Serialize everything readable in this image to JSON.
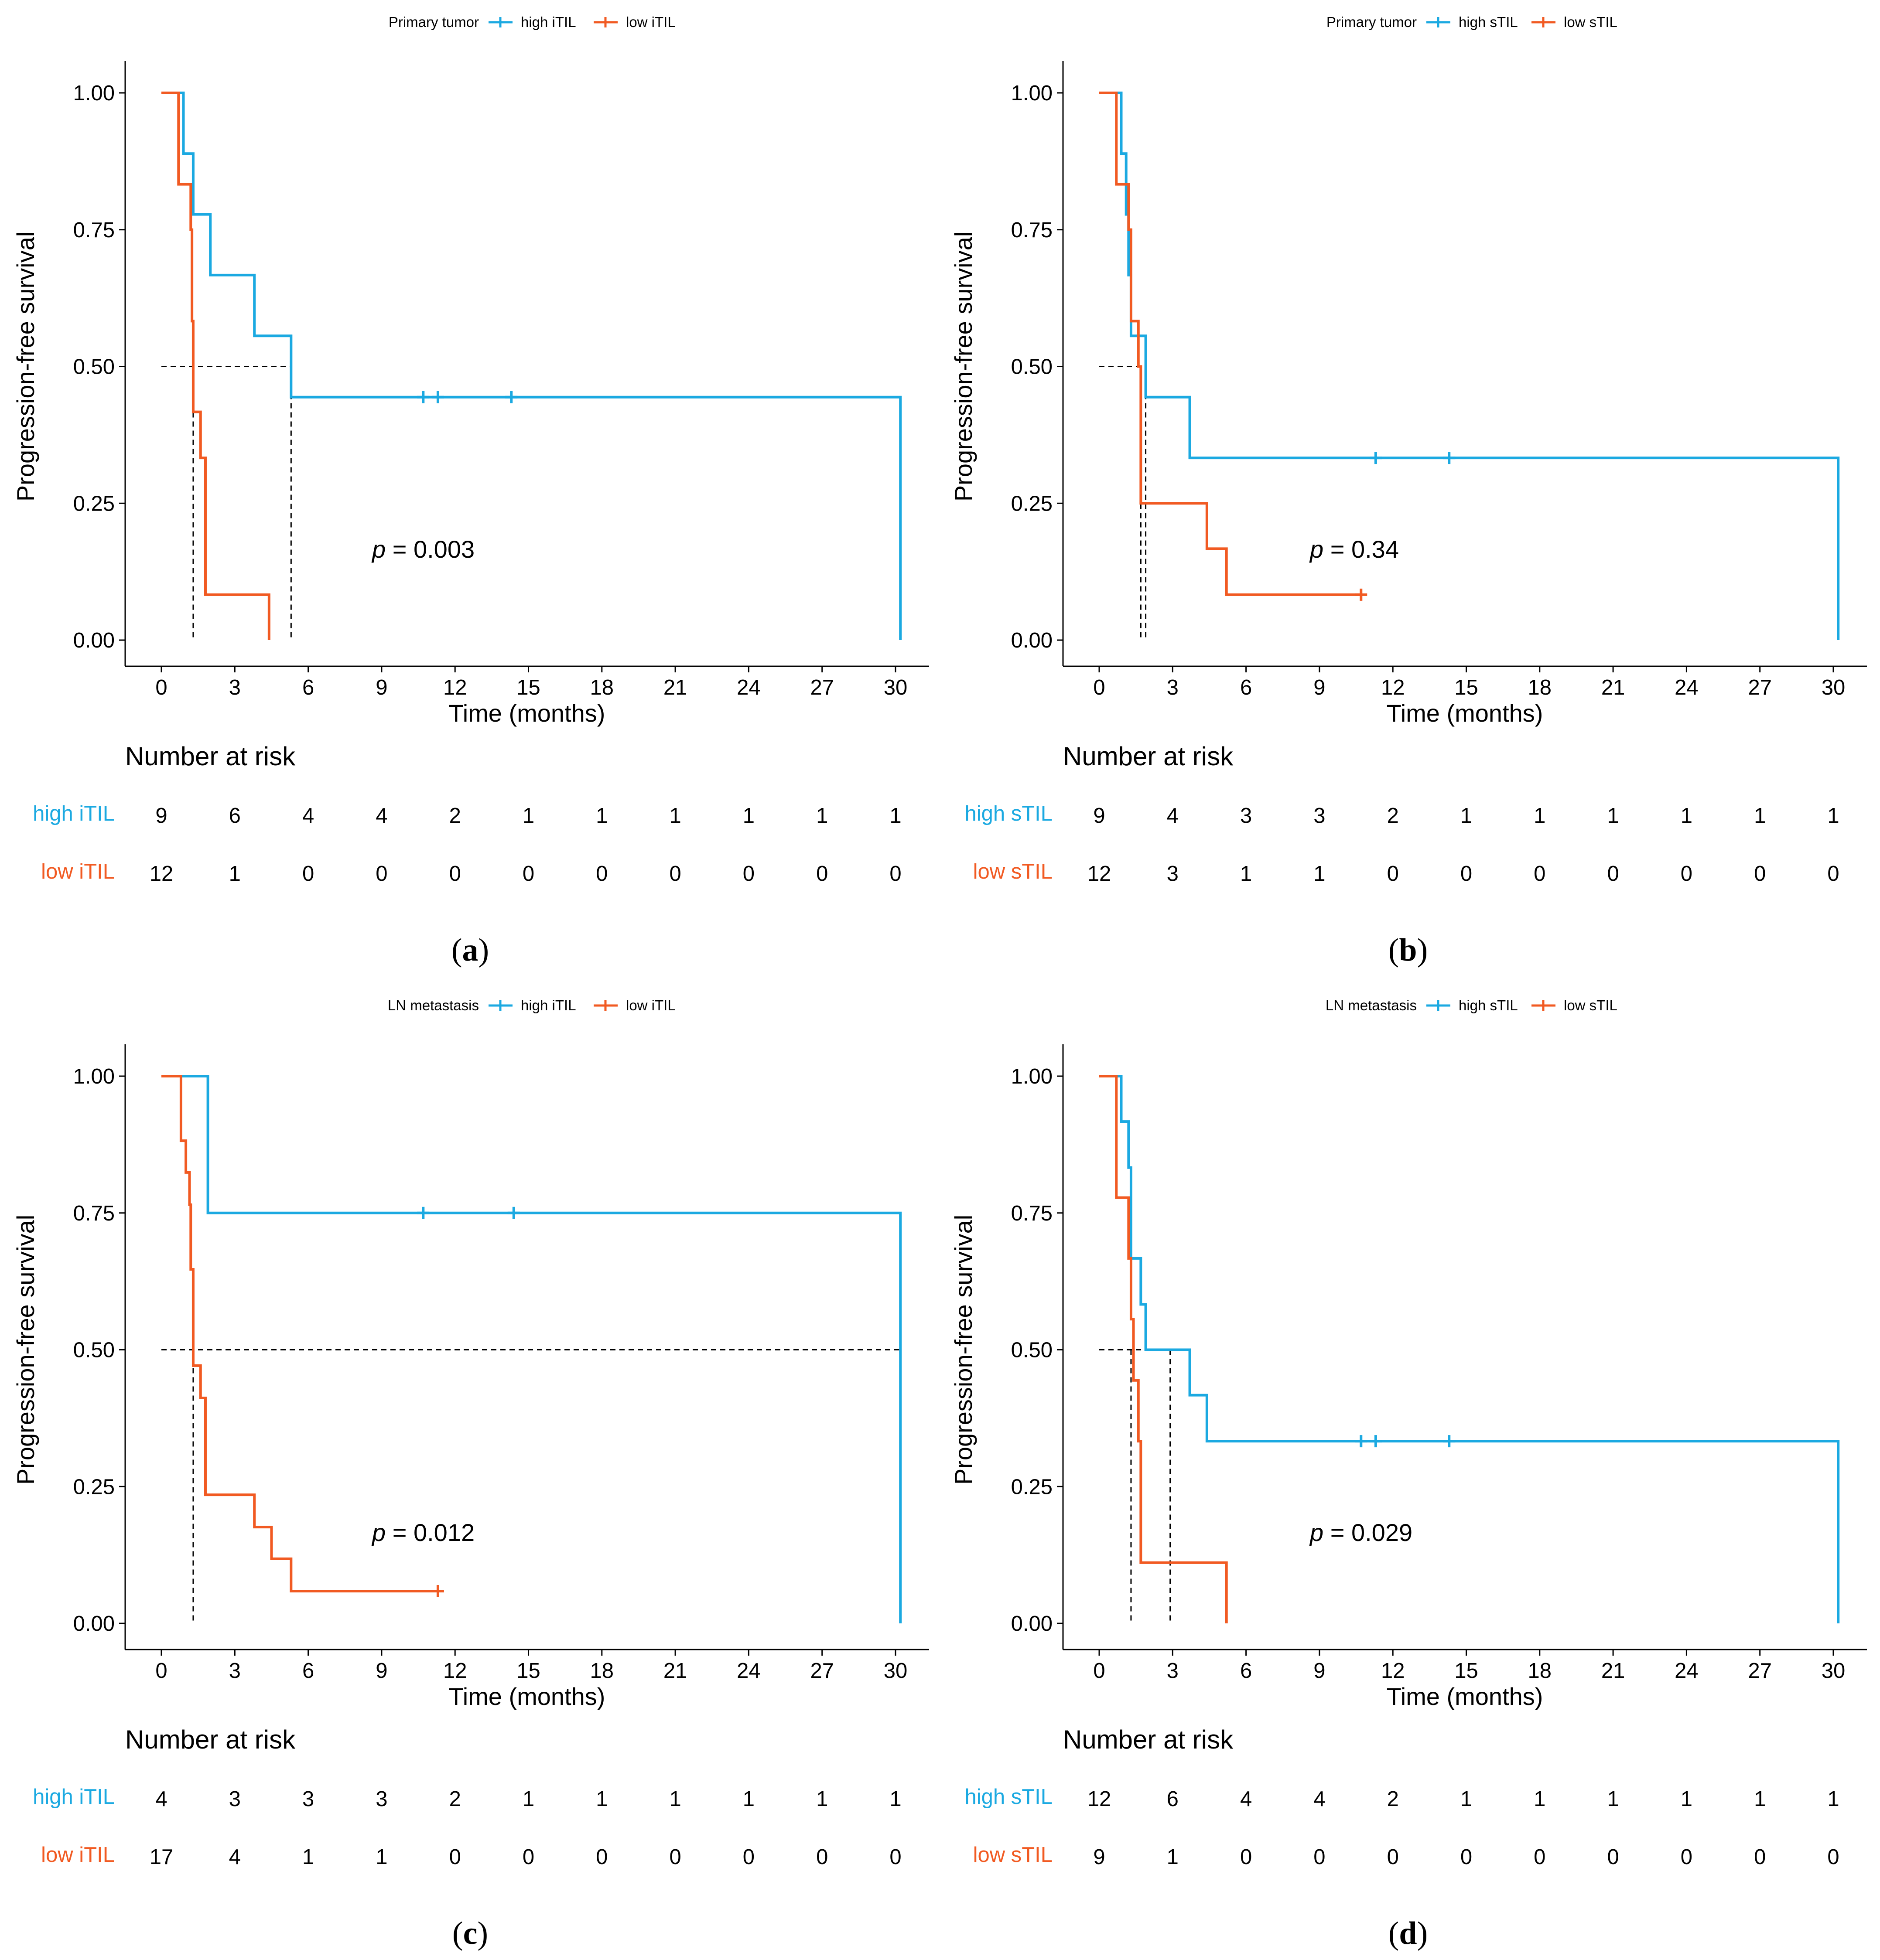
{
  "chart_data": [
    {
      "type": "line",
      "panel": "a",
      "legend_title": "Primary tumor",
      "legend_placement": "top",
      "xlabel": "Time (months)",
      "ylabel": "Progression-free survival",
      "xlim": [
        -1,
        31.5
      ],
      "ylim": [
        0,
        1
      ],
      "x_ticks": [
        "0",
        "3",
        "6",
        "9",
        "12",
        "15",
        "18",
        "21",
        "24",
        "27",
        "30"
      ],
      "y_ticks": [
        "0.00",
        "0.25",
        "0.50",
        "0.75",
        "1.00"
      ],
      "grid": false,
      "pvalue_prefix": "p",
      "pvalue": " = 0.003",
      "median_line": {
        "y": 0.5,
        "x": [
          1.3,
          5.3
        ]
      },
      "series": [
        {
          "name": "high iTIL",
          "color": "#1ba9e1",
          "steps": [
            [
              0,
              1.0
            ],
            [
              0.9,
              0.889
            ],
            [
              1.3,
              0.778
            ],
            [
              2.0,
              0.667
            ],
            [
              3.8,
              0.556
            ],
            [
              5.3,
              0.444
            ],
            [
              30.2,
              0.0
            ]
          ],
          "end": 30.2,
          "censor": [
            10.7,
            11.3,
            14.3
          ],
          "censor_y": [
            0.444,
            0.444,
            0.444
          ]
        },
        {
          "name": "low iTIL",
          "color": "#f15a22",
          "steps": [
            [
              0,
              1.0
            ],
            [
              0.7,
              0.833
            ],
            [
              1.2,
              0.75
            ],
            [
              1.25,
              0.583
            ],
            [
              1.3,
              0.417
            ],
            [
              1.6,
              0.333
            ],
            [
              1.8,
              0.083
            ],
            [
              4.4,
              0.0
            ]
          ],
          "end": 4.4,
          "censor": [],
          "censor_y": []
        }
      ],
      "risk_table": {
        "title": "Number at risk",
        "rows": [
          {
            "label": "high iTIL",
            "color": "#1ba9e1",
            "values": [
              "9",
              "6",
              "4",
              "4",
              "2",
              "1",
              "1",
              "1",
              "1",
              "1",
              "1"
            ]
          },
          {
            "label": "low iTIL",
            "color": "#f15a22",
            "values": [
              "12",
              "1",
              "0",
              "0",
              "0",
              "0",
              "0",
              "0",
              "0",
              "0",
              "0"
            ]
          }
        ]
      },
      "caption": {
        "open": "(",
        "letter": "a",
        "close": ")"
      }
    },
    {
      "type": "line",
      "panel": "b",
      "legend_title": "Primary tumor",
      "legend_placement": "top",
      "xlabel": "Time (months)",
      "ylabel": "Progression-free survival",
      "xlim": [
        -1,
        31.5
      ],
      "ylim": [
        0,
        1
      ],
      "x_ticks": [
        "0",
        "3",
        "6",
        "9",
        "12",
        "15",
        "18",
        "21",
        "24",
        "27",
        "30"
      ],
      "y_ticks": [
        "0.00",
        "0.25",
        "0.50",
        "0.75",
        "1.00"
      ],
      "grid": false,
      "pvalue_prefix": "p",
      "pvalue": " = 0.34",
      "median_line": {
        "y": 0.5,
        "x": [
          1.7,
          1.9
        ]
      },
      "series": [
        {
          "name": "high sTIL",
          "color": "#1ba9e1",
          "steps": [
            [
              0,
              1.0
            ],
            [
              0.9,
              0.889
            ],
            [
              1.1,
              0.778
            ],
            [
              1.2,
              0.667
            ],
            [
              1.3,
              0.556
            ],
            [
              1.9,
              0.444
            ],
            [
              3.7,
              0.333
            ],
            [
              30.2,
              0.0
            ]
          ],
          "end": 30.2,
          "censor": [
            11.3,
            14.3
          ],
          "censor_y": [
            0.333,
            0.333
          ]
        },
        {
          "name": "low sTIL",
          "color": "#f15a22",
          "steps": [
            [
              0,
              1.0
            ],
            [
              0.7,
              0.833
            ],
            [
              1.2,
              0.75
            ],
            [
              1.3,
              0.583
            ],
            [
              1.6,
              0.5
            ],
            [
              1.7,
              0.25
            ],
            [
              4.4,
              0.167
            ],
            [
              5.2,
              0.083
            ]
          ],
          "end": 10.7,
          "censor": [
            10.7
          ],
          "censor_y": [
            0.083
          ]
        }
      ],
      "risk_table": {
        "title": "Number at risk",
        "rows": [
          {
            "label": "high sTIL",
            "color": "#1ba9e1",
            "values": [
              "9",
              "4",
              "3",
              "3",
              "2",
              "1",
              "1",
              "1",
              "1",
              "1",
              "1"
            ]
          },
          {
            "label": "low sTIL",
            "color": "#f15a22",
            "values": [
              "12",
              "3",
              "1",
              "1",
              "0",
              "0",
              "0",
              "0",
              "0",
              "0",
              "0"
            ]
          }
        ]
      },
      "caption": {
        "open": "(",
        "letter": "b",
        "close": ")"
      }
    },
    {
      "type": "line",
      "panel": "c",
      "legend_title": "LN metastasis",
      "legend_placement": "top",
      "xlabel": "Time (months)",
      "ylabel": "Progression-free survival",
      "xlim": [
        -1,
        31.5
      ],
      "ylim": [
        0,
        1
      ],
      "x_ticks": [
        "0",
        "3",
        "6",
        "9",
        "12",
        "15",
        "18",
        "21",
        "24",
        "27",
        "30"
      ],
      "y_ticks": [
        "0.00",
        "0.25",
        "0.50",
        "0.75",
        "1.00"
      ],
      "grid": false,
      "pvalue_prefix": "p",
      "pvalue": " = 0.012",
      "median_line": {
        "y": 0.5,
        "x": [
          1.3,
          30.2
        ]
      },
      "series": [
        {
          "name": "high iTIL",
          "color": "#1ba9e1",
          "steps": [
            [
              0,
              1.0
            ],
            [
              1.9,
              0.75
            ],
            [
              30.2,
              0.0
            ]
          ],
          "end": 30.2,
          "censor": [
            10.7,
            14.4
          ],
          "censor_y": [
            0.75,
            0.75
          ]
        },
        {
          "name": "low iTIL",
          "color": "#f15a22",
          "steps": [
            [
              0,
              1.0
            ],
            [
              0.8,
              0.882
            ],
            [
              1.0,
              0.824
            ],
            [
              1.15,
              0.765
            ],
            [
              1.2,
              0.647
            ],
            [
              1.3,
              0.471
            ],
            [
              1.6,
              0.412
            ],
            [
              1.8,
              0.235
            ],
            [
              3.8,
              0.176
            ],
            [
              4.5,
              0.118
            ],
            [
              5.3,
              0.059
            ]
          ],
          "end": 11.3,
          "censor": [
            11.3
          ],
          "censor_y": [
            0.059
          ]
        }
      ],
      "risk_table": {
        "title": "Number at risk",
        "rows": [
          {
            "label": "high iTIL",
            "color": "#1ba9e1",
            "values": [
              "4",
              "3",
              "3",
              "3",
              "2",
              "1",
              "1",
              "1",
              "1",
              "1",
              "1"
            ]
          },
          {
            "label": "low iTIL",
            "color": "#f15a22",
            "values": [
              "17",
              "4",
              "1",
              "1",
              "0",
              "0",
              "0",
              "0",
              "0",
              "0",
              "0"
            ]
          }
        ]
      },
      "caption": {
        "open": "(",
        "letter": "c",
        "close": ")"
      }
    },
    {
      "type": "line",
      "panel": "d",
      "legend_title": "LN metastasis",
      "legend_placement": "top",
      "xlabel": "Time (months)",
      "ylabel": "Progression-free survival",
      "xlim": [
        -1,
        31.5
      ],
      "ylim": [
        0,
        1
      ],
      "x_ticks": [
        "0",
        "3",
        "6",
        "9",
        "12",
        "15",
        "18",
        "21",
        "24",
        "27",
        "30"
      ],
      "y_ticks": [
        "0.00",
        "0.25",
        "0.50",
        "0.75",
        "1.00"
      ],
      "grid": false,
      "pvalue_prefix": "p",
      "pvalue": " = 0.029",
      "median_line": {
        "y": 0.5,
        "x": [
          1.3,
          2.9
        ]
      },
      "series": [
        {
          "name": "high sTIL",
          "color": "#1ba9e1",
          "steps": [
            [
              0,
              1.0
            ],
            [
              0.9,
              0.917
            ],
            [
              1.2,
              0.833
            ],
            [
              1.3,
              0.667
            ],
            [
              1.7,
              0.583
            ],
            [
              1.9,
              0.5
            ],
            [
              3.7,
              0.417
            ],
            [
              4.4,
              0.333
            ],
            [
              30.2,
              0.0
            ]
          ],
          "end": 30.2,
          "censor": [
            10.7,
            11.3,
            14.3
          ],
          "censor_y": [
            0.333,
            0.333,
            0.333
          ]
        },
        {
          "name": "low sTIL",
          "color": "#f15a22",
          "steps": [
            [
              0,
              1.0
            ],
            [
              0.7,
              0.778
            ],
            [
              1.2,
              0.667
            ],
            [
              1.3,
              0.556
            ],
            [
              1.4,
              0.444
            ],
            [
              1.6,
              0.333
            ],
            [
              1.7,
              0.111
            ],
            [
              5.2,
              0.0
            ]
          ],
          "end": 5.2,
          "censor": [],
          "censor_y": []
        }
      ],
      "risk_table": {
        "title": "Number at risk",
        "rows": [
          {
            "label": "high sTIL",
            "color": "#1ba9e1",
            "values": [
              "12",
              "6",
              "4",
              "4",
              "2",
              "1",
              "1",
              "1",
              "1",
              "1",
              "1"
            ]
          },
          {
            "label": "low sTIL",
            "color": "#f15a22",
            "values": [
              "9",
              "1",
              "0",
              "0",
              "0",
              "0",
              "0",
              "0",
              "0",
              "0",
              "0"
            ]
          }
        ]
      },
      "caption": {
        "open": "(",
        "letter": "d",
        "close": ")"
      }
    }
  ]
}
